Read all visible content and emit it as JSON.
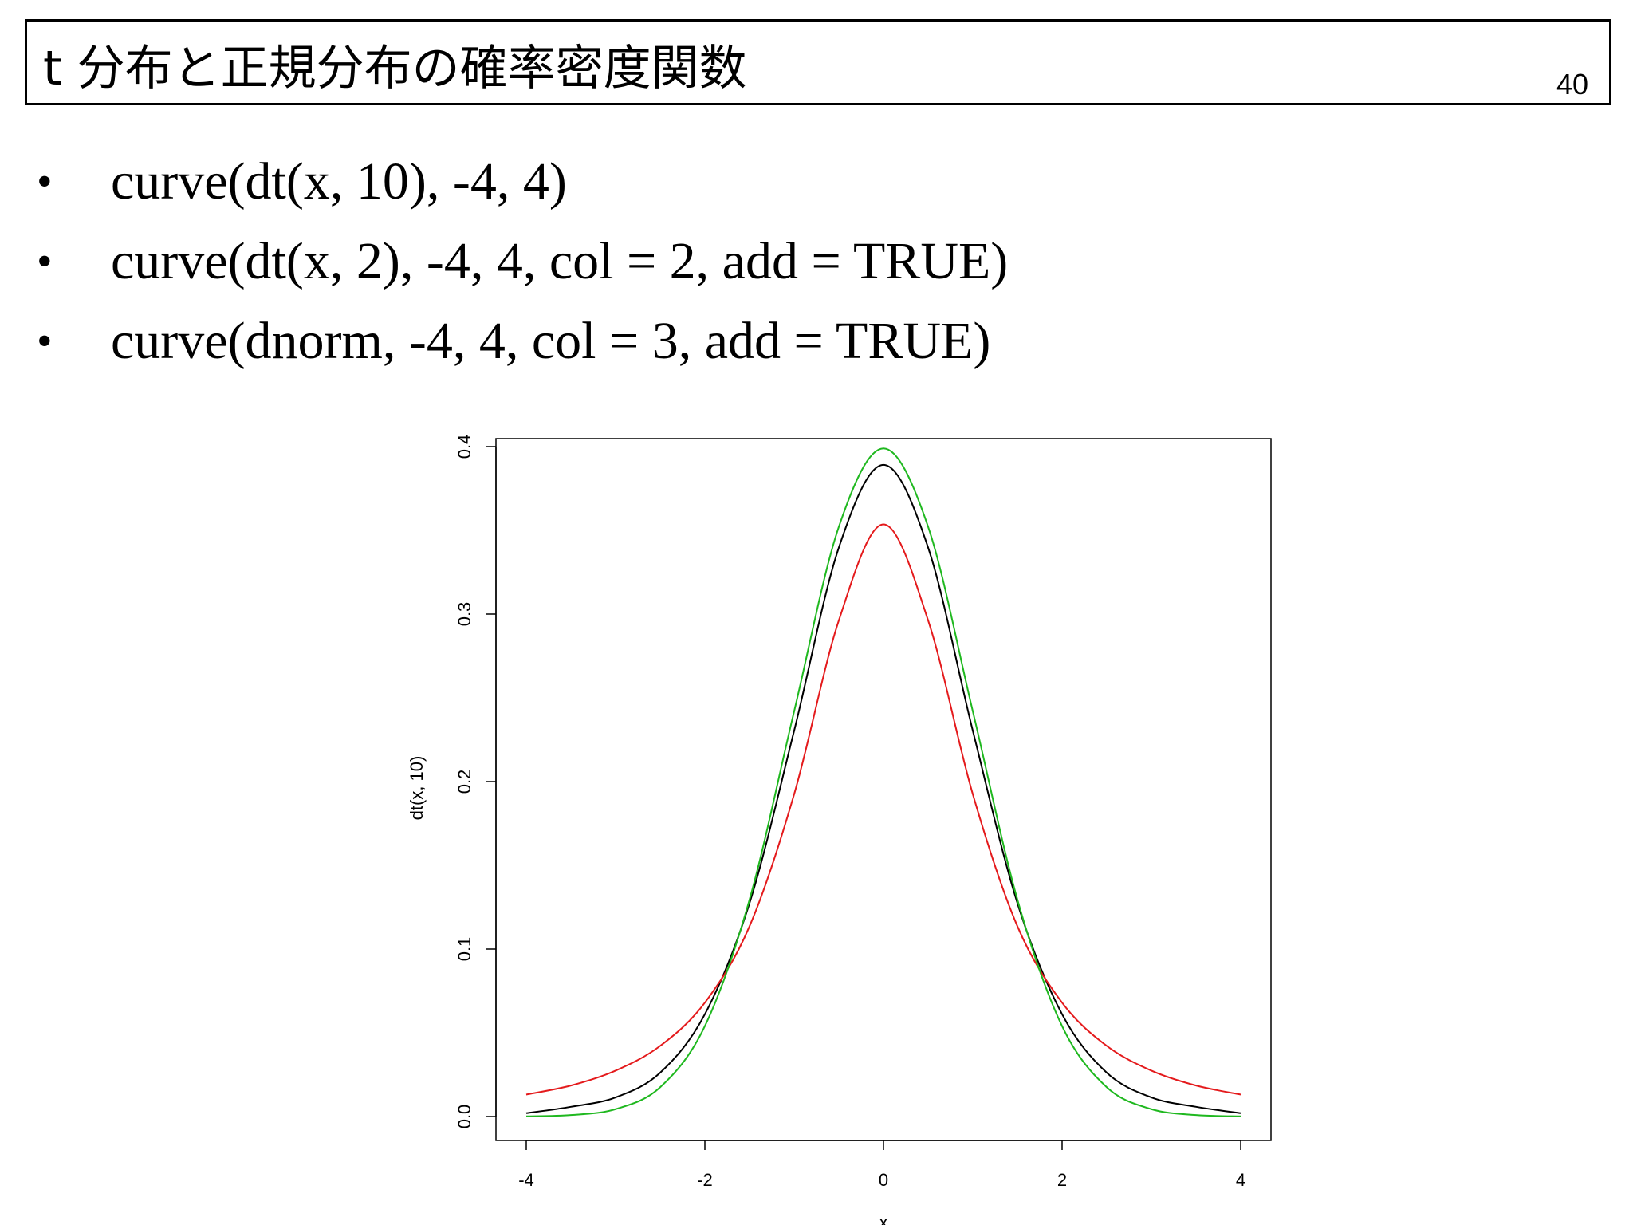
{
  "slide": {
    "title": "t 分布と正規分布の確率密度関数",
    "page_number": "40"
  },
  "bullets": [
    {
      "marker": "•",
      "text": "curve(dt(x, 10), -4, 4)"
    },
    {
      "marker": "•",
      "text": "curve(dt(x, 2), -4, 4, col = 2, add = TRUE)"
    },
    {
      "marker": "•",
      "text": "curve(dnorm, -4, 4, col = 3, add = TRUE)"
    }
  ],
  "chart_data": {
    "type": "line",
    "title": "",
    "xlabel": "x",
    "ylabel": "dt(x, 10)",
    "xlim": [
      -4,
      4
    ],
    "ylim": [
      0,
      0.4
    ],
    "x_ticks": [
      "-4",
      "-2",
      "0",
      "2",
      "4"
    ],
    "y_ticks": [
      "0.0",
      "0.1",
      "0.2",
      "0.3",
      "0.4"
    ],
    "grid": false,
    "legend": "none",
    "x": [
      -4.0,
      -3.5,
      -3.0,
      -2.5,
      -2.0,
      -1.5,
      -1.0,
      -0.5,
      0.0,
      0.5,
      1.0,
      1.5,
      2.0,
      2.5,
      3.0,
      3.5,
      4.0
    ],
    "series": [
      {
        "color": "#000000",
        "values": [
          0.002,
          0.0058,
          0.0114,
          0.0262,
          0.0611,
          0.1274,
          0.2304,
          0.3397,
          0.3891,
          0.3397,
          0.2304,
          0.1274,
          0.0611,
          0.0262,
          0.0114,
          0.0058,
          0.002
        ]
      },
      {
        "color": "#e41a1c",
        "values": [
          0.0131,
          0.0185,
          0.0274,
          0.0422,
          0.068,
          0.1136,
          0.1925,
          0.2962,
          0.3536,
          0.2962,
          0.1925,
          0.1136,
          0.068,
          0.0422,
          0.0274,
          0.0185,
          0.0131
        ]
      },
      {
        "color": "#1fb81f",
        "values": [
          0.0001,
          0.0009,
          0.0044,
          0.0175,
          0.054,
          0.1295,
          0.242,
          0.3521,
          0.3989,
          0.3521,
          0.242,
          0.1295,
          0.054,
          0.0175,
          0.0044,
          0.0009,
          0.0001
        ]
      }
    ]
  }
}
